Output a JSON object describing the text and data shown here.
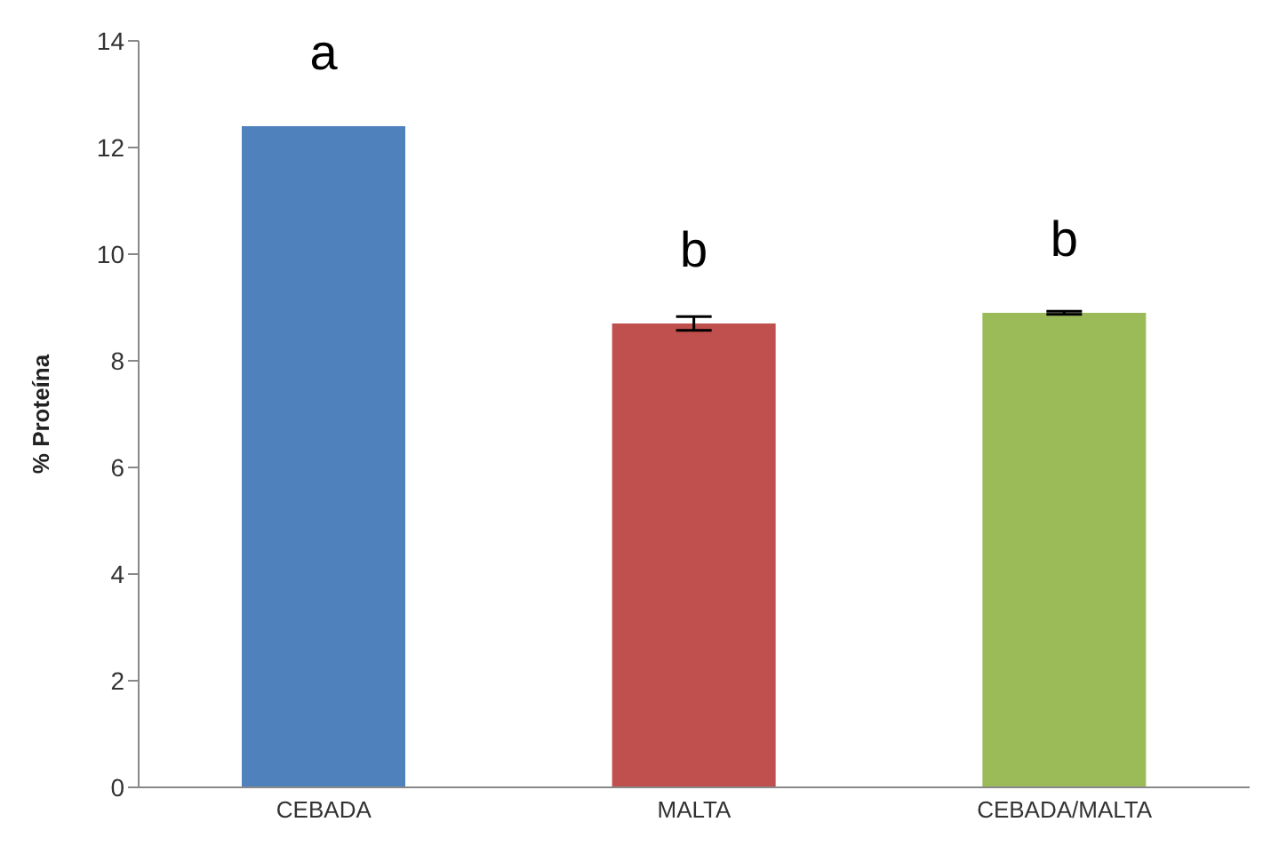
{
  "chart_data": {
    "type": "bar",
    "ylabel": "% Proteína",
    "categories": [
      "CEBADA",
      "MALTA",
      "CEBADA/MALTA"
    ],
    "values": [
      12.4,
      8.7,
      8.9
    ],
    "colors": [
      "#4f81bd",
      "#c0504d",
      "#9bbb59"
    ],
    "errors": [
      null,
      0.13,
      0.03
    ],
    "ylim": [
      0,
      14
    ],
    "yticks": [
      0,
      2,
      4,
      6,
      8,
      10,
      12,
      14
    ],
    "grid": false,
    "legend": false,
    "annotations": [
      "a",
      "b",
      "b"
    ]
  }
}
